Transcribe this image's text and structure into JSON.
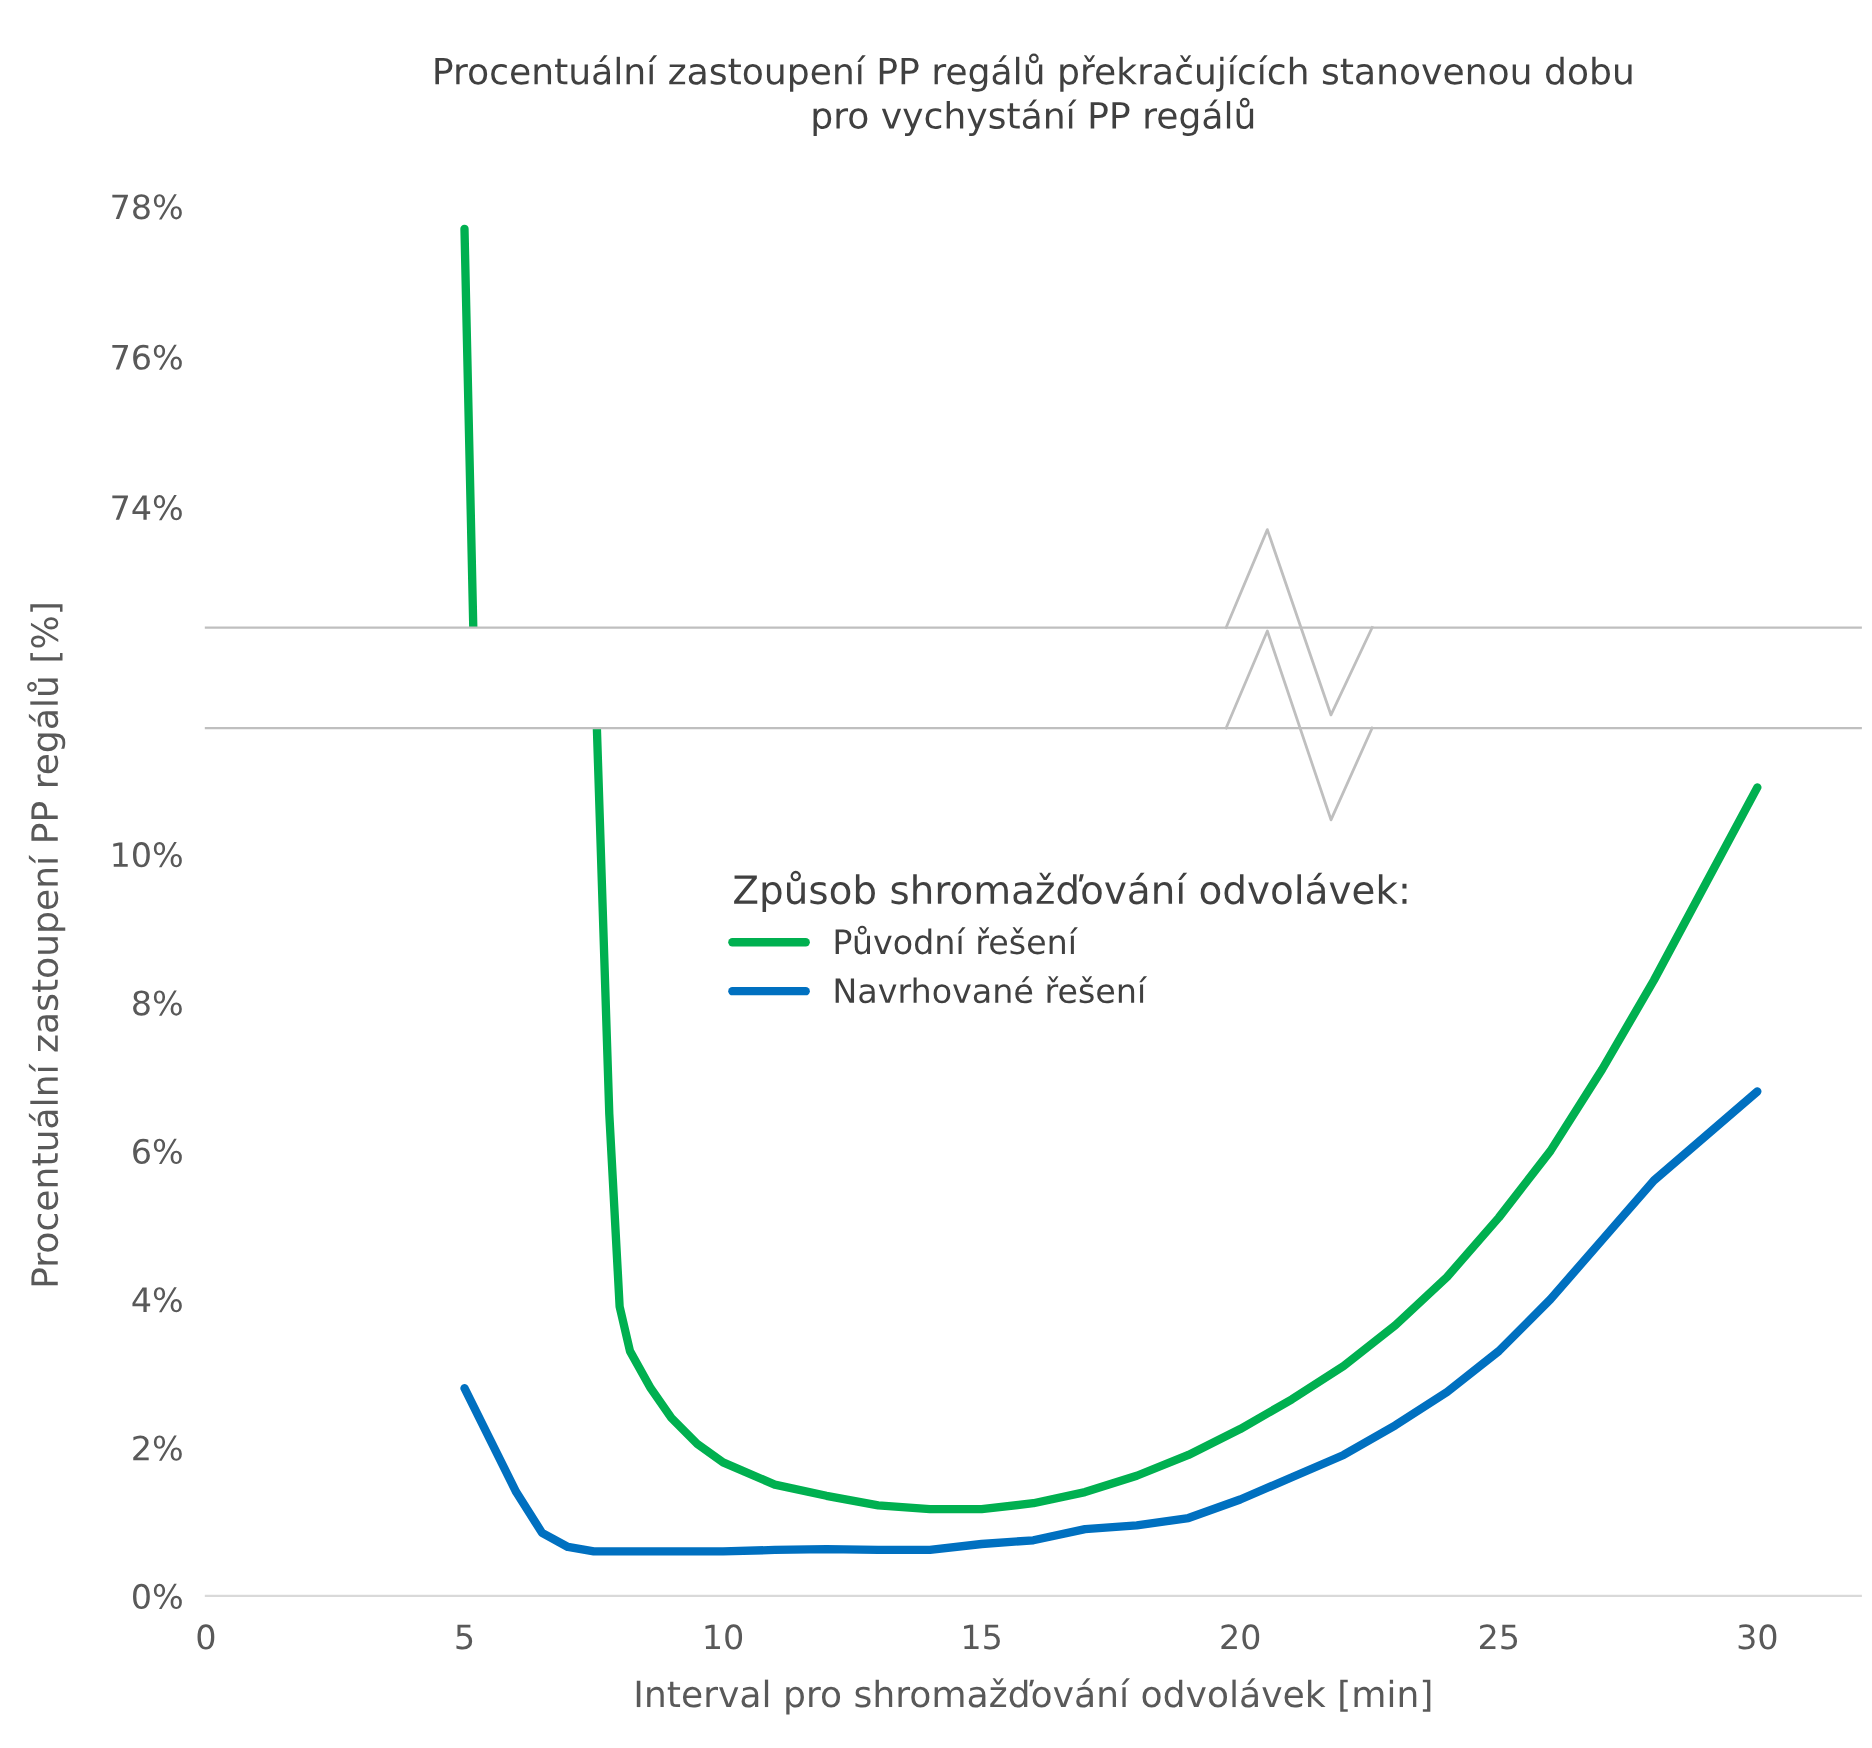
{
  "chart_data": [
    {
      "type": "line",
      "title": "Procentuální zastoupení PP regálů překračujících stanovenou dobu\npro vychystání PP regálů",
      "xlim": [
        0,
        32
      ],
      "ylim": [
        72.4,
        78
      ],
      "yticks": [
        {
          "value": 74,
          "label": "74%"
        },
        {
          "value": 76,
          "label": "76%"
        },
        {
          "value": 78,
          "label": "78%"
        }
      ],
      "tick_labels": "y",
      "grid": false,
      "legend": false,
      "series": [
        {
          "color": "#00b050",
          "x": [
            5,
            5.17
          ],
          "values": [
            77.7,
            72.4
          ]
        }
      ]
    },
    {
      "type": "line",
      "xlabel": "Interval pro shromažďování odvolávek [min]",
      "ylabel": "Procentuální zastoupení PP regálů [%]",
      "legend_title": "Způsob shromažďování odvolávek:",
      "legend": "top",
      "grid": false,
      "xlim": [
        0,
        32
      ],
      "xticks": [
        0,
        5,
        10,
        15,
        20,
        25,
        30
      ],
      "ylim": [
        0,
        11.7
      ],
      "yticks": [
        {
          "value": 0,
          "label": "0%"
        },
        {
          "value": 2,
          "label": "2%"
        },
        {
          "value": 4,
          "label": "4%"
        },
        {
          "value": 6,
          "label": "6%"
        },
        {
          "value": 8,
          "label": "8%"
        },
        {
          "value": 10,
          "label": "10%"
        }
      ],
      "series": [
        {
          "name": "Původní řešení",
          "color": "#00b050",
          "x": [
            7.56,
            7.8,
            8.0,
            8.2,
            8.6,
            9,
            9.5,
            10,
            11,
            12,
            13,
            14,
            15,
            16,
            17,
            18,
            19,
            20,
            21,
            22,
            23,
            24,
            25,
            26,
            27,
            28,
            29,
            30
          ],
          "values": [
            11.7,
            6.5,
            3.9,
            3.3,
            2.8,
            2.4,
            2.05,
            1.8,
            1.5,
            1.35,
            1.22,
            1.17,
            1.17,
            1.25,
            1.4,
            1.62,
            1.9,
            2.25,
            2.65,
            3.1,
            3.65,
            4.3,
            5.1,
            6.0,
            7.1,
            8.3,
            9.6,
            10.9
          ]
        },
        {
          "name": "Navrhované řešení",
          "color": "#0070c0",
          "x": [
            5,
            5.5,
            6,
            6.5,
            7,
            7.5,
            8,
            9,
            10,
            11,
            12,
            13,
            14,
            15,
            16,
            17,
            18,
            19,
            20,
            21,
            22,
            23,
            24,
            25,
            26,
            27,
            28,
            29,
            30
          ],
          "values": [
            2.8,
            2.1,
            1.4,
            0.85,
            0.66,
            0.6,
            0.6,
            0.6,
            0.6,
            0.62,
            0.63,
            0.62,
            0.62,
            0.7,
            0.75,
            0.9,
            0.95,
            1.05,
            1.3,
            1.6,
            1.9,
            2.3,
            2.75,
            3.3,
            4.0,
            4.8,
            5.6,
            6.2,
            6.8
          ]
        }
      ]
    }
  ]
}
